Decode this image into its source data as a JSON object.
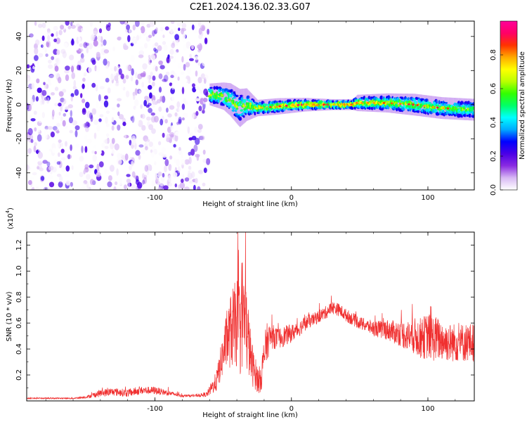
{
  "title": "C2E1.2024.136.02.33.G07",
  "chart_data": [
    {
      "type": "heatmap",
      "xlabel": "Height of straight line (km)",
      "ylabel": "Frequency (Hz)",
      "xlim": [
        -194,
        134
      ],
      "ylim": [
        -50,
        49
      ],
      "xticks": [
        -100,
        0,
        100
      ],
      "yticks": [
        -40,
        -20,
        0,
        20,
        40
      ],
      "grid": false,
      "noise_region": {
        "x_start": -194,
        "x_end": -61,
        "y_range": [
          -50,
          49
        ]
      },
      "signal_band": [
        {
          "x": -60,
          "center": 6,
          "halfwidth": 4,
          "amp": 0.65
        },
        {
          "x": -50,
          "center": 5,
          "halfwidth": 5,
          "amp": 0.5
        },
        {
          "x": -45,
          "center": 3,
          "halfwidth": 6,
          "amp": 0.55
        },
        {
          "x": -38,
          "center": -2,
          "halfwidth": 7,
          "amp": 0.5
        },
        {
          "x": -33,
          "center": 0,
          "halfwidth": 6,
          "amp": 0.55
        },
        {
          "x": -25,
          "center": -2,
          "halfwidth": 3,
          "amp": 0.6
        },
        {
          "x": -10,
          "center": -1,
          "halfwidth": 3,
          "amp": 0.7
        },
        {
          "x": 10,
          "center": 0,
          "halfwidth": 2.5,
          "amp": 0.8
        },
        {
          "x": 30,
          "center": 0,
          "halfwidth": 2,
          "amp": 0.85
        },
        {
          "x": 45,
          "center": 0,
          "halfwidth": 2,
          "amp": 0.8
        },
        {
          "x": 48,
          "center": 1,
          "halfwidth": 3,
          "amp": 0.7
        },
        {
          "x": 70,
          "center": 1,
          "halfwidth": 3.5,
          "amp": 0.65
        },
        {
          "x": 90,
          "center": 0,
          "halfwidth": 4,
          "amp": 0.6
        },
        {
          "x": 110,
          "center": -2,
          "halfwidth": 4,
          "amp": 0.5
        },
        {
          "x": 134,
          "center": -3,
          "halfwidth": 4,
          "amp": 0.45
        }
      ]
    },
    {
      "type": "colorbar",
      "label": "Normalized spectral amplitude",
      "range": [
        0,
        1
      ],
      "ticks": [
        "0.0",
        "0.2",
        "0.4",
        "0.6",
        "0.8"
      ],
      "colors": [
        "#ffffff",
        "#d8b8f4",
        "#8a2be2",
        "#4b00e6",
        "#0000ff",
        "#00aaff",
        "#00ffff",
        "#00ff66",
        "#33ff00",
        "#bbff00",
        "#ffff00",
        "#ffaa00",
        "#ff3300",
        "#ff0066",
        "#ff0099"
      ]
    },
    {
      "type": "line",
      "xlabel": "Height of straight line (km)",
      "ylabel": "SNR (10 * v/v)",
      "scale_label_pre": "(x10",
      "scale_label_exp": "4",
      "scale_label_post": ")",
      "xlim": [
        -194,
        134
      ],
      "ylim": [
        0,
        1.3
      ],
      "xticks": [
        -100,
        0,
        100
      ],
      "yticks": [
        0.2,
        0.4,
        0.6,
        0.8,
        1.0,
        1.2
      ],
      "color": "#f03030",
      "x": [
        -194,
        -180,
        -160,
        -150,
        -140,
        -130,
        -120,
        -110,
        -100,
        -90,
        -80,
        -70,
        -62,
        -55,
        -48,
        -44,
        -40,
        -38,
        -36,
        -34,
        -32,
        -30,
        -28,
        -26,
        -24,
        -22,
        -20,
        -18,
        -15,
        -10,
        -5,
        0,
        5,
        10,
        15,
        20,
        25,
        30,
        35,
        40,
        45,
        50,
        55,
        60,
        65,
        70,
        75,
        80,
        85,
        90,
        95,
        100,
        105,
        110,
        115,
        120,
        125,
        130,
        134
      ],
      "y": [
        0.02,
        0.02,
        0.02,
        0.03,
        0.06,
        0.07,
        0.06,
        0.08,
        0.08,
        0.06,
        0.04,
        0.04,
        0.05,
        0.15,
        0.45,
        0.55,
        0.6,
        0.55,
        0.7,
        0.6,
        0.5,
        0.35,
        0.25,
        0.2,
        0.15,
        0.2,
        0.35,
        0.45,
        0.5,
        0.48,
        0.5,
        0.52,
        0.55,
        0.6,
        0.62,
        0.65,
        0.68,
        0.72,
        0.7,
        0.66,
        0.63,
        0.6,
        0.58,
        0.56,
        0.55,
        0.55,
        0.53,
        0.52,
        0.5,
        0.5,
        0.48,
        0.5,
        0.48,
        0.47,
        0.45,
        0.45,
        0.45,
        0.45,
        0.45
      ],
      "noise": [
        0.005,
        0.005,
        0.005,
        0.01,
        0.03,
        0.03,
        0.03,
        0.03,
        0.03,
        0.02,
        0.01,
        0.01,
        0.02,
        0.08,
        0.2,
        0.3,
        0.35,
        0.4,
        0.45,
        0.4,
        0.3,
        0.2,
        0.15,
        0.12,
        0.1,
        0.12,
        0.15,
        0.15,
        0.1,
        0.08,
        0.08,
        0.07,
        0.06,
        0.06,
        0.05,
        0.05,
        0.05,
        0.05,
        0.05,
        0.05,
        0.05,
        0.05,
        0.05,
        0.06,
        0.07,
        0.08,
        0.09,
        0.1,
        0.12,
        0.14,
        0.16,
        0.18,
        0.18,
        0.16,
        0.15,
        0.15,
        0.15,
        0.15,
        0.15
      ]
    }
  ]
}
